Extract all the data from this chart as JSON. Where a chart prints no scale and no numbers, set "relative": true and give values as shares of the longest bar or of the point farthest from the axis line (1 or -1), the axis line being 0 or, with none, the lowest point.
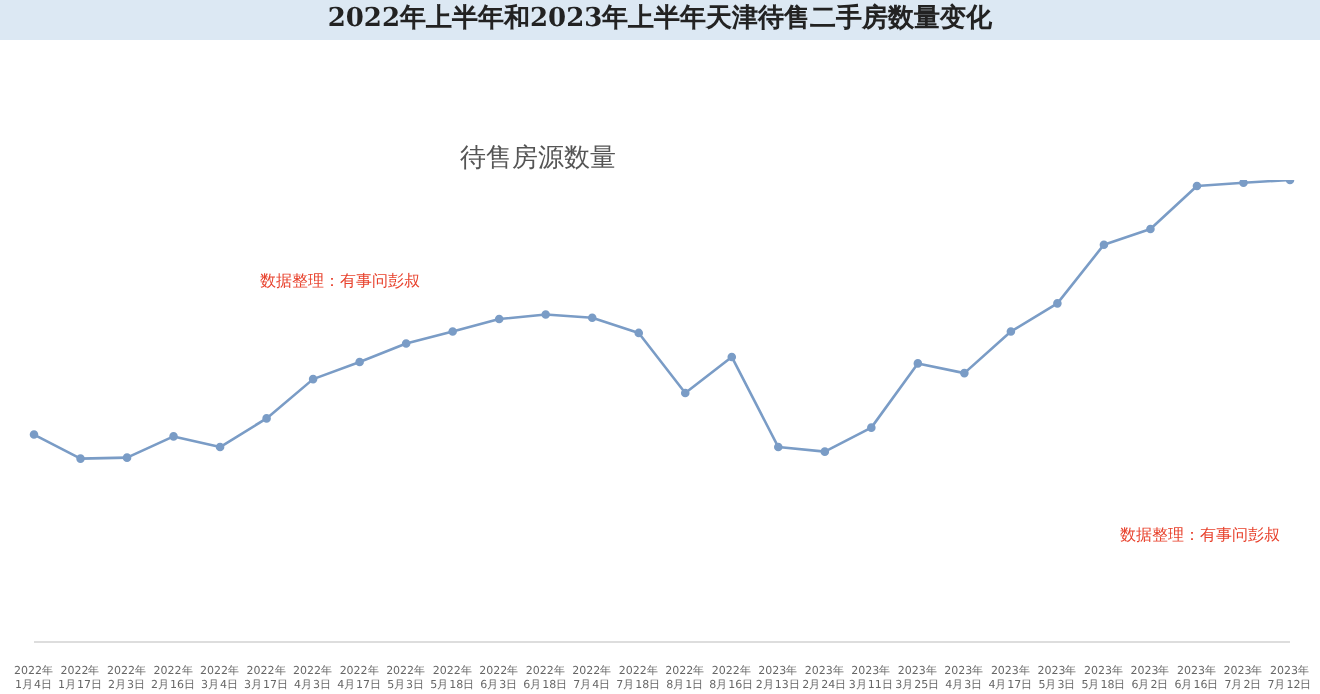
{
  "chart_data": {
    "type": "line",
    "title": "2022年上半年和2023年上半年天津待售二手房数量变化",
    "subtitle": "待售房源数量",
    "relative": true,
    "marker": "circle",
    "color": "#7a9cc6",
    "categories": [
      "2022年1月4日",
      "2022年1月17日",
      "2022年2月3日",
      "2022年2月16日",
      "2022年3月4日",
      "2022年3月17日",
      "2022年4月3日",
      "2022年4月17日",
      "2022年5月3日",
      "2022年5月18日",
      "2022年6月3日",
      "2022年6月18日",
      "2022年7月4日",
      "2022年7月18日",
      "2022年8月1日",
      "2022年8月16日",
      "2023年2月13日",
      "2023年2月24日",
      "2023年3月11日",
      "2023年3月25日",
      "2023年4月3日",
      "2023年4月17日",
      "2023年5月3日",
      "2023年5月18日",
      "2023年6月2日",
      "2023年6月16日",
      "2023年7月2日",
      "2023年7月12日"
    ],
    "values": [
      0.449,
      0.397,
      0.399,
      0.445,
      0.422,
      0.484,
      0.569,
      0.606,
      0.646,
      0.672,
      0.699,
      0.709,
      0.702,
      0.669,
      0.539,
      0.617,
      0.422,
      0.412,
      0.464,
      0.603,
      0.582,
      0.672,
      0.733,
      0.86,
      0.894,
      0.987,
      0.994,
      1
    ],
    "annotations": [
      "数据整理：有事问彭叔",
      "数据整理：有事问彭叔"
    ]
  }
}
